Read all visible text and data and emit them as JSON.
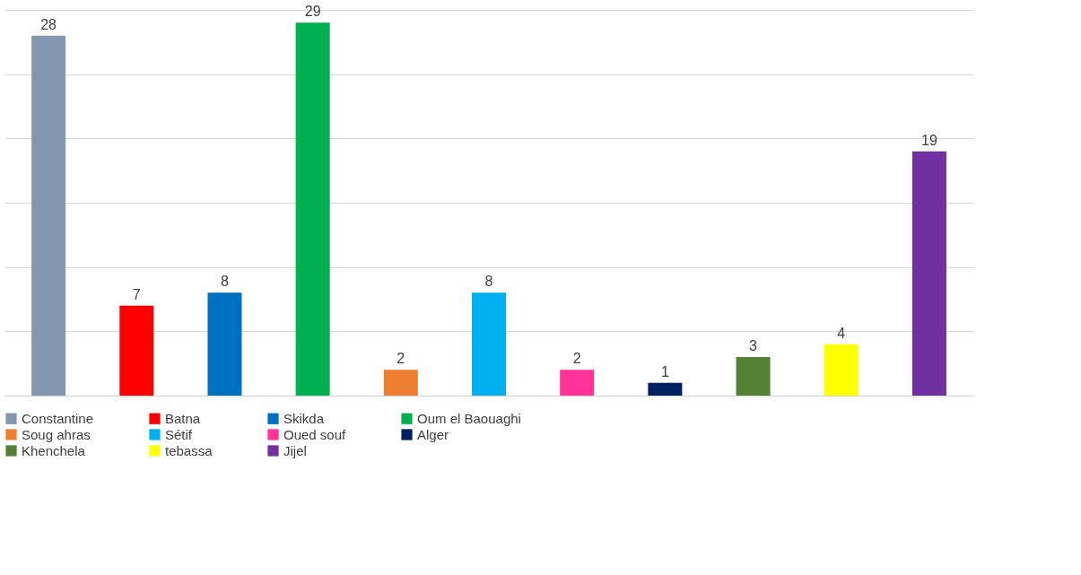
{
  "chart_data": {
    "type": "bar",
    "categories": [
      null,
      null,
      null,
      null,
      null,
      null,
      null,
      null,
      null,
      null,
      null
    ],
    "series": [
      {
        "name": "Constantine",
        "color": "#8497b0",
        "values": [
          28,
          null,
          null,
          null,
          null,
          null,
          null,
          null,
          null,
          null,
          null
        ]
      },
      {
        "name": "Batna",
        "color": "#ff0000",
        "values": [
          null,
          7,
          null,
          null,
          null,
          null,
          null,
          null,
          null,
          null,
          null
        ]
      },
      {
        "name": "Skikda",
        "color": "#0070c0",
        "values": [
          null,
          null,
          8,
          null,
          null,
          null,
          null,
          null,
          null,
          null,
          null
        ]
      },
      {
        "name": "Oum el Baouaghi",
        "color": "#00b050",
        "values": [
          null,
          null,
          null,
          29,
          null,
          null,
          null,
          null,
          null,
          null,
          null
        ]
      },
      {
        "name": "Soug ahras",
        "color": "#ed7d31",
        "values": [
          null,
          null,
          null,
          null,
          2,
          null,
          null,
          null,
          null,
          null,
          null
        ]
      },
      {
        "name": "Sétif",
        "color": "#00b0f0",
        "values": [
          null,
          null,
          null,
          null,
          null,
          8,
          null,
          null,
          null,
          null,
          null
        ]
      },
      {
        "name": "Oued souf",
        "color": "#ff3399",
        "values": [
          null,
          null,
          null,
          null,
          null,
          null,
          2,
          null,
          null,
          null,
          null
        ]
      },
      {
        "name": "Alger",
        "color": "#002060",
        "values": [
          null,
          null,
          null,
          null,
          null,
          null,
          null,
          1,
          null,
          null,
          null
        ]
      },
      {
        "name": "Khenchela",
        "color": "#548235",
        "values": [
          null,
          null,
          null,
          null,
          null,
          null,
          null,
          null,
          3,
          null,
          null
        ]
      },
      {
        "name": "tebassa",
        "color": "#ffff00",
        "values": [
          null,
          null,
          null,
          null,
          null,
          null,
          null,
          null,
          null,
          4,
          null
        ]
      },
      {
        "name": "Jijel",
        "color": "#7030a0",
        "values": [
          null,
          null,
          null,
          null,
          null,
          null,
          null,
          null,
          null,
          null,
          19
        ]
      }
    ],
    "ylim": [
      0,
      30
    ],
    "yticks": [
      {
        "value": 0,
        "label": null
      },
      {
        "value": 5,
        "label": null
      },
      {
        "value": 10,
        "label": null
      },
      {
        "value": 15,
        "label": null
      },
      {
        "value": 20,
        "label": null
      },
      {
        "value": 25,
        "label": null
      },
      {
        "value": 30,
        "label": null
      }
    ],
    "stacked": true,
    "data_labels": true,
    "legend": "bottom",
    "grid": "y",
    "tick_labels": false
  }
}
